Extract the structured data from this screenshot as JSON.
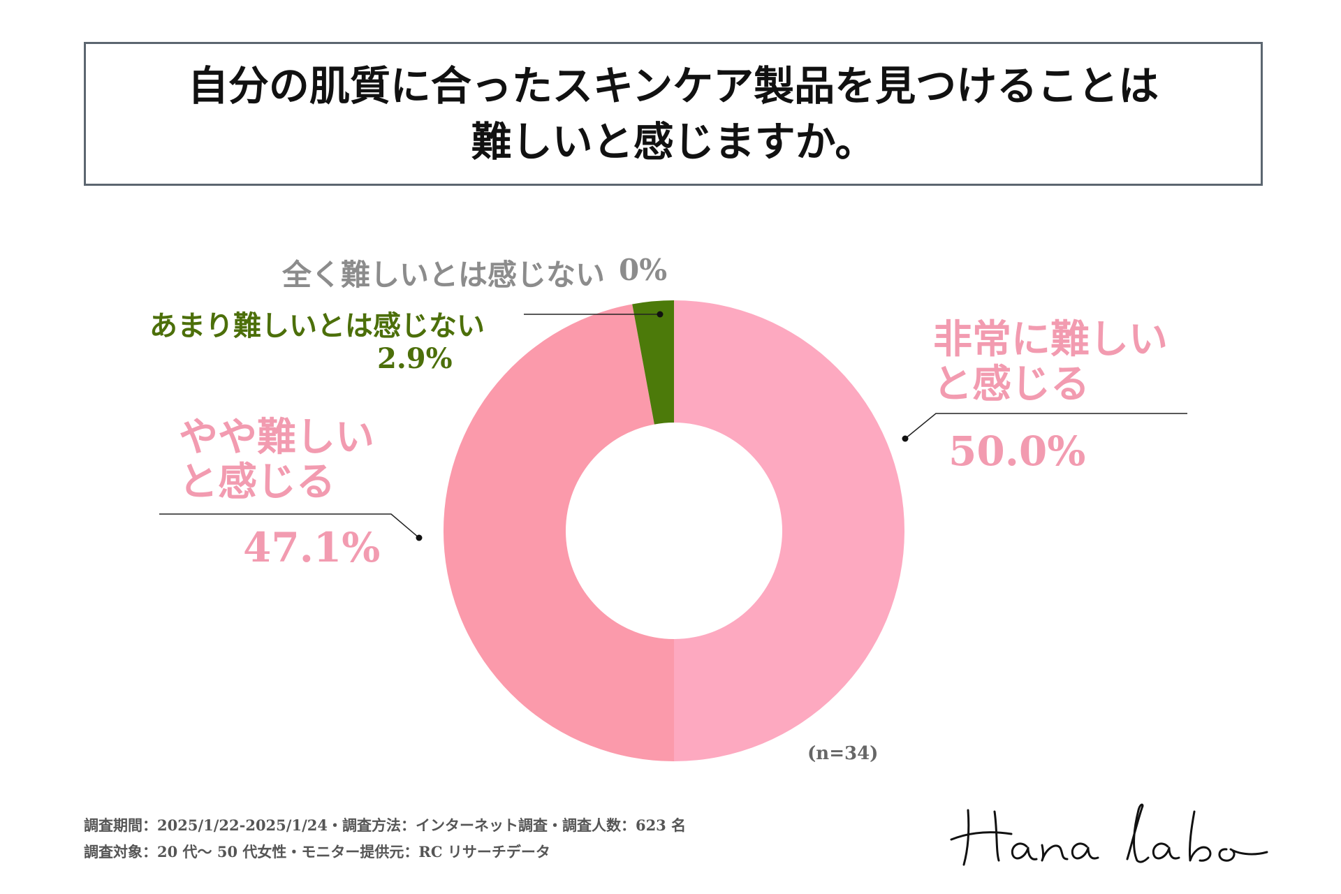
{
  "title": {
    "line1": "自分の肌質に合ったスキンケア製品を見つけることは",
    "line2": "難しいと感じますか。"
  },
  "chart_data": {
    "type": "pie",
    "categories": [
      "非常に難しいと感じる",
      "やや難しいと感じる",
      "あまり難しいとは感じない",
      "全く難しいとは感じない"
    ],
    "values": [
      50.0,
      47.1,
      2.9,
      0
    ],
    "colors": [
      "#fda9c0",
      "#fb9aab",
      "#4c7a0a",
      "#8c8c8c"
    ],
    "n_label": "(n=34)"
  },
  "labels": {
    "very_line1": "非常に難しい",
    "very_line2": "と感じる",
    "very_pct": "50.0%",
    "some_line1": "やや難しい",
    "some_line2": "と感じる",
    "some_pct": "47.1%",
    "notmuch": "あまり難しいとは感じない",
    "notmuch_pct": "2.9%",
    "none": "全く難しいとは感じない",
    "none_pct": "0%"
  },
  "footer": {
    "line1": "調査期間：2025/1/22-2025/1/24・調査方法：インターネット調査・調査人数：623 名",
    "line2": "調査対象：20 代～ 50 代女性・モニター提供元：RC リサーチデータ"
  },
  "logo": "Hana labo"
}
